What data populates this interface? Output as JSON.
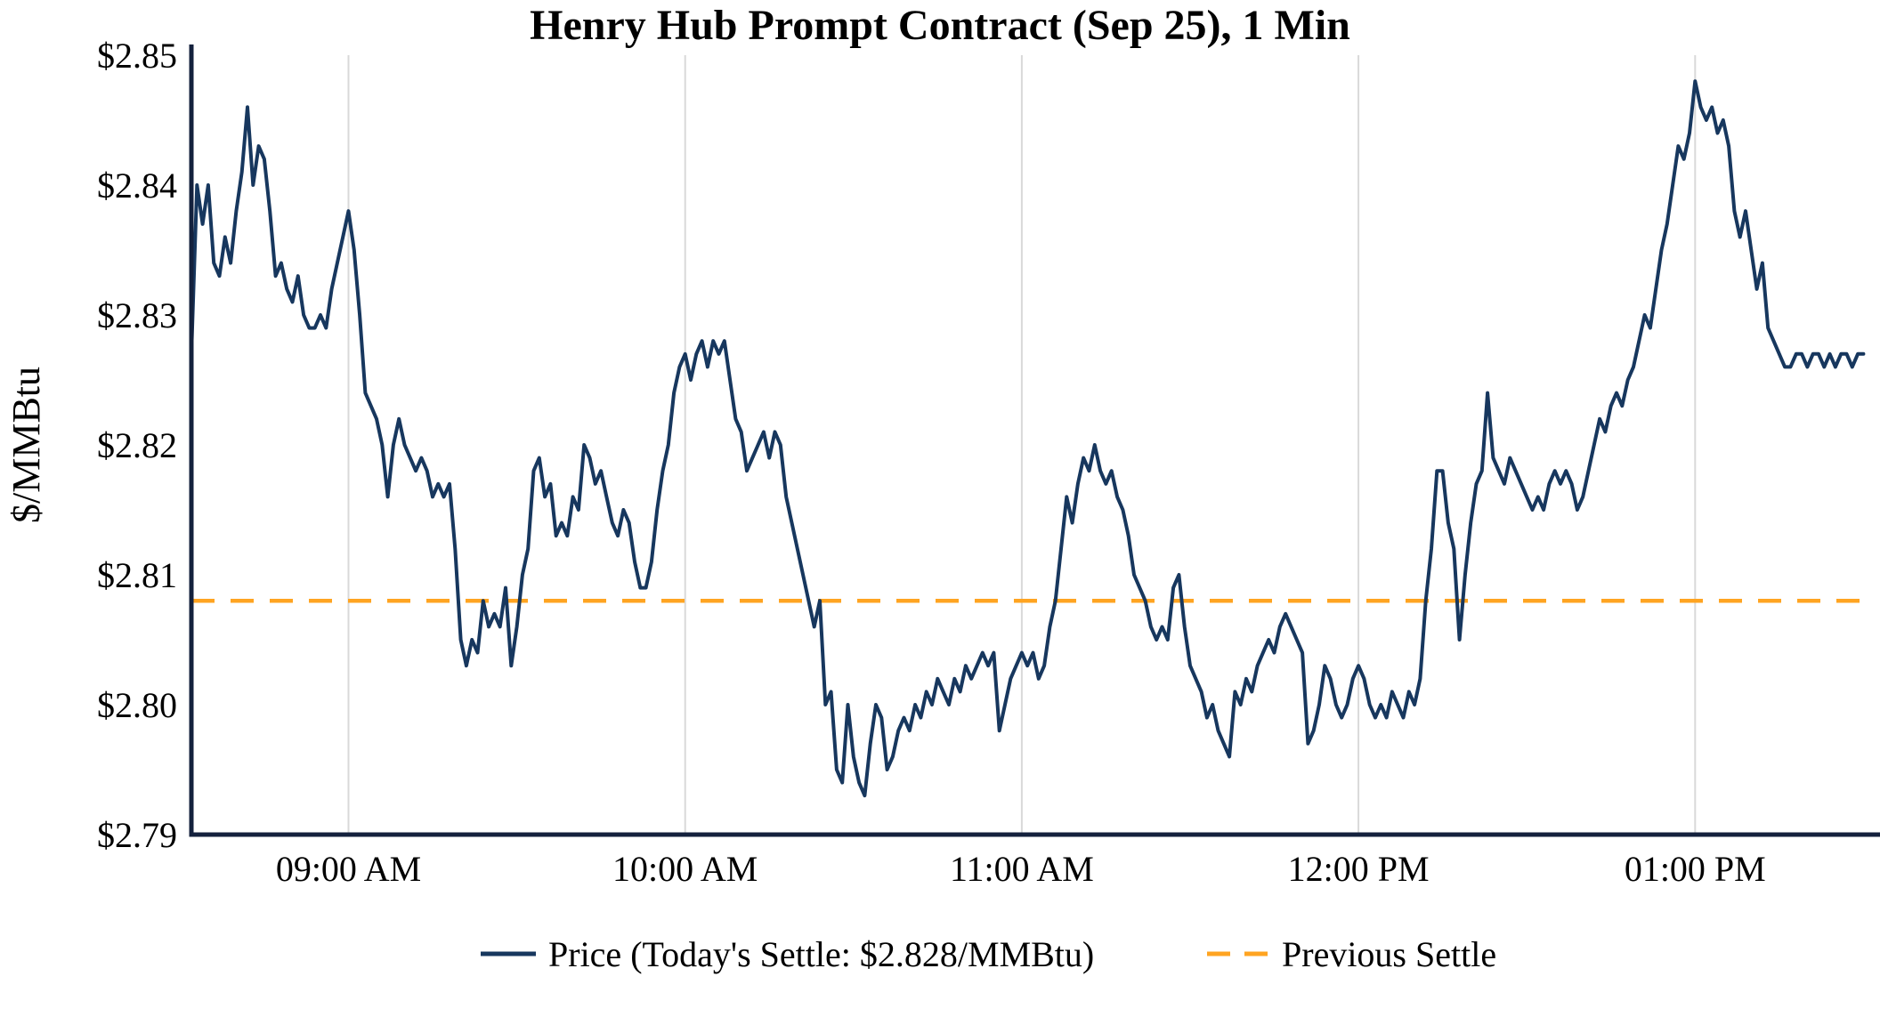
{
  "chart_data": {
    "type": "line",
    "title": "Henry Hub Prompt Contract (Sep 25), 1 Min",
    "ylabel": "$/MMBtu",
    "xlabel": "",
    "ylim": [
      2.79,
      2.85
    ],
    "xlim_minutes": [
      512,
      812
    ],
    "y_ticks": [
      {
        "value": 2.79,
        "label": "$2.79"
      },
      {
        "value": 2.8,
        "label": "$2.80"
      },
      {
        "value": 2.81,
        "label": "$2.81"
      },
      {
        "value": 2.82,
        "label": "$2.82"
      },
      {
        "value": 2.83,
        "label": "$2.83"
      },
      {
        "value": 2.84,
        "label": "$2.84"
      },
      {
        "value": 2.85,
        "label": "$2.85"
      }
    ],
    "x_ticks": [
      {
        "minutes": 540,
        "label": "09:00 AM"
      },
      {
        "minutes": 600,
        "label": "10:00 AM"
      },
      {
        "minutes": 660,
        "label": "11:00 AM"
      },
      {
        "minutes": 720,
        "label": "12:00 PM"
      },
      {
        "minutes": 780,
        "label": "01:00 PM"
      }
    ],
    "grid": {
      "vertical": true,
      "horizontal": false,
      "color": "#d9d9d9"
    },
    "axis_color": "#14213d",
    "legend_position": "bottom",
    "previous_settle": {
      "value": 2.808,
      "label": "Previous Settle",
      "color": "#ffa421",
      "style": "dashed"
    },
    "series": [
      {
        "name": "Price",
        "legend_label": "Price (Today's Settle: $2.828/MMBtu)",
        "color": "#17375e",
        "start_minutes": 512,
        "interval_minutes": 1,
        "prices": [
          2.827,
          2.84,
          2.837,
          2.84,
          2.834,
          2.833,
          2.836,
          2.834,
          2.838,
          2.841,
          2.846,
          2.84,
          2.843,
          2.842,
          2.838,
          2.833,
          2.834,
          2.832,
          2.831,
          2.833,
          2.83,
          2.829,
          2.829,
          2.83,
          2.829,
          2.832,
          2.834,
          2.836,
          2.838,
          2.835,
          2.83,
          2.824,
          2.823,
          2.822,
          2.82,
          2.816,
          2.82,
          2.822,
          2.82,
          2.819,
          2.818,
          2.819,
          2.818,
          2.816,
          2.817,
          2.816,
          2.817,
          2.812,
          2.805,
          2.803,
          2.805,
          2.804,
          2.808,
          2.806,
          2.807,
          2.806,
          2.809,
          2.803,
          2.806,
          2.81,
          2.812,
          2.818,
          2.819,
          2.816,
          2.817,
          2.813,
          2.814,
          2.813,
          2.816,
          2.815,
          2.82,
          2.819,
          2.817,
          2.818,
          2.816,
          2.814,
          2.813,
          2.815,
          2.814,
          2.811,
          2.809,
          2.809,
          2.811,
          2.815,
          2.818,
          2.82,
          2.824,
          2.826,
          2.827,
          2.825,
          2.827,
          2.828,
          2.826,
          2.828,
          2.827,
          2.828,
          2.825,
          2.822,
          2.821,
          2.818,
          2.819,
          2.82,
          2.821,
          2.819,
          2.821,
          2.82,
          2.816,
          2.814,
          2.812,
          2.81,
          2.808,
          2.806,
          2.808,
          2.8,
          2.801,
          2.795,
          2.794,
          2.8,
          2.796,
          2.794,
          2.793,
          2.797,
          2.8,
          2.799,
          2.795,
          2.796,
          2.798,
          2.799,
          2.798,
          2.8,
          2.799,
          2.801,
          2.8,
          2.802,
          2.801,
          2.8,
          2.802,
          2.801,
          2.803,
          2.802,
          2.803,
          2.804,
          2.803,
          2.804,
          2.798,
          2.8,
          2.802,
          2.803,
          2.804,
          2.803,
          2.804,
          2.802,
          2.803,
          2.806,
          2.808,
          2.812,
          2.816,
          2.814,
          2.817,
          2.819,
          2.818,
          2.82,
          2.818,
          2.817,
          2.818,
          2.816,
          2.815,
          2.813,
          2.81,
          2.809,
          2.808,
          2.806,
          2.805,
          2.806,
          2.805,
          2.809,
          2.81,
          2.806,
          2.803,
          2.802,
          2.801,
          2.799,
          2.8,
          2.798,
          2.797,
          2.796,
          2.801,
          2.8,
          2.802,
          2.801,
          2.803,
          2.804,
          2.805,
          2.804,
          2.806,
          2.807,
          2.806,
          2.805,
          2.804,
          2.797,
          2.798,
          2.8,
          2.803,
          2.802,
          2.8,
          2.799,
          2.8,
          2.802,
          2.803,
          2.802,
          2.8,
          2.799,
          2.8,
          2.799,
          2.801,
          2.8,
          2.799,
          2.801,
          2.8,
          2.802,
          2.808,
          2.812,
          2.818,
          2.818,
          2.814,
          2.812,
          2.805,
          2.81,
          2.814,
          2.817,
          2.818,
          2.824,
          2.819,
          2.818,
          2.817,
          2.819,
          2.818,
          2.817,
          2.816,
          2.815,
          2.816,
          2.815,
          2.817,
          2.818,
          2.817,
          2.818,
          2.817,
          2.815,
          2.816,
          2.818,
          2.82,
          2.822,
          2.821,
          2.823,
          2.824,
          2.823,
          2.825,
          2.826,
          2.828,
          2.83,
          2.829,
          2.832,
          2.835,
          2.837,
          2.84,
          2.843,
          2.842,
          2.844,
          2.848,
          2.846,
          2.845,
          2.846,
          2.844,
          2.845,
          2.843,
          2.838,
          2.836,
          2.838,
          2.835,
          2.832,
          2.834,
          2.829,
          2.828,
          2.827,
          2.826,
          2.826,
          2.827,
          2.827,
          2.826,
          2.827,
          2.827,
          2.826,
          2.827,
          2.826,
          2.827,
          2.827,
          2.826,
          2.827,
          2.827
        ]
      }
    ]
  }
}
